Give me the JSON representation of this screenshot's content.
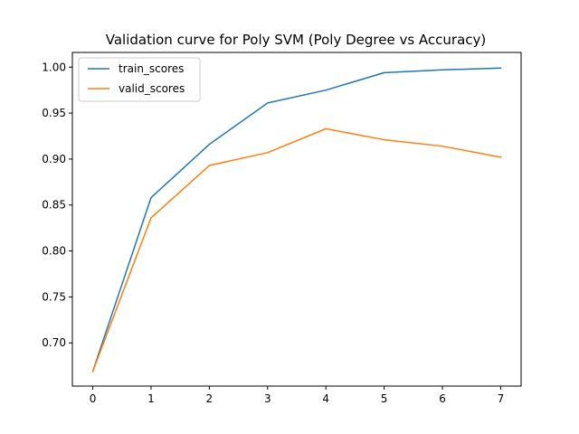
{
  "chart_data": {
    "type": "line",
    "title": "Validation curve for Poly SVM (Poly Degree vs Accuracy)",
    "xlabel": "",
    "ylabel": "",
    "x": [
      0,
      1,
      2,
      3,
      4,
      5,
      6,
      7
    ],
    "xlim": [
      -0.35,
      7.35
    ],
    "ylim": [
      0.653,
      1.016
    ],
    "xticks": [
      0,
      1,
      2,
      3,
      4,
      5,
      6,
      7
    ],
    "yticks": [
      0.7,
      0.75,
      0.8,
      0.85,
      0.9,
      0.95,
      1.0
    ],
    "ytick_labels": [
      "0.70",
      "0.75",
      "0.80",
      "0.85",
      "0.90",
      "0.95",
      "1.00"
    ],
    "grid": false,
    "legend_position": "top-left",
    "series": [
      {
        "name": "train_scores",
        "color": "#1f77b4",
        "values": [
          0.669,
          0.858,
          0.916,
          0.961,
          0.975,
          0.994,
          0.997,
          0.999
        ]
      },
      {
        "name": "valid_scores",
        "color": "#ff7f0e",
        "values": [
          0.669,
          0.836,
          0.893,
          0.907,
          0.933,
          0.921,
          0.914,
          0.902
        ]
      }
    ]
  }
}
